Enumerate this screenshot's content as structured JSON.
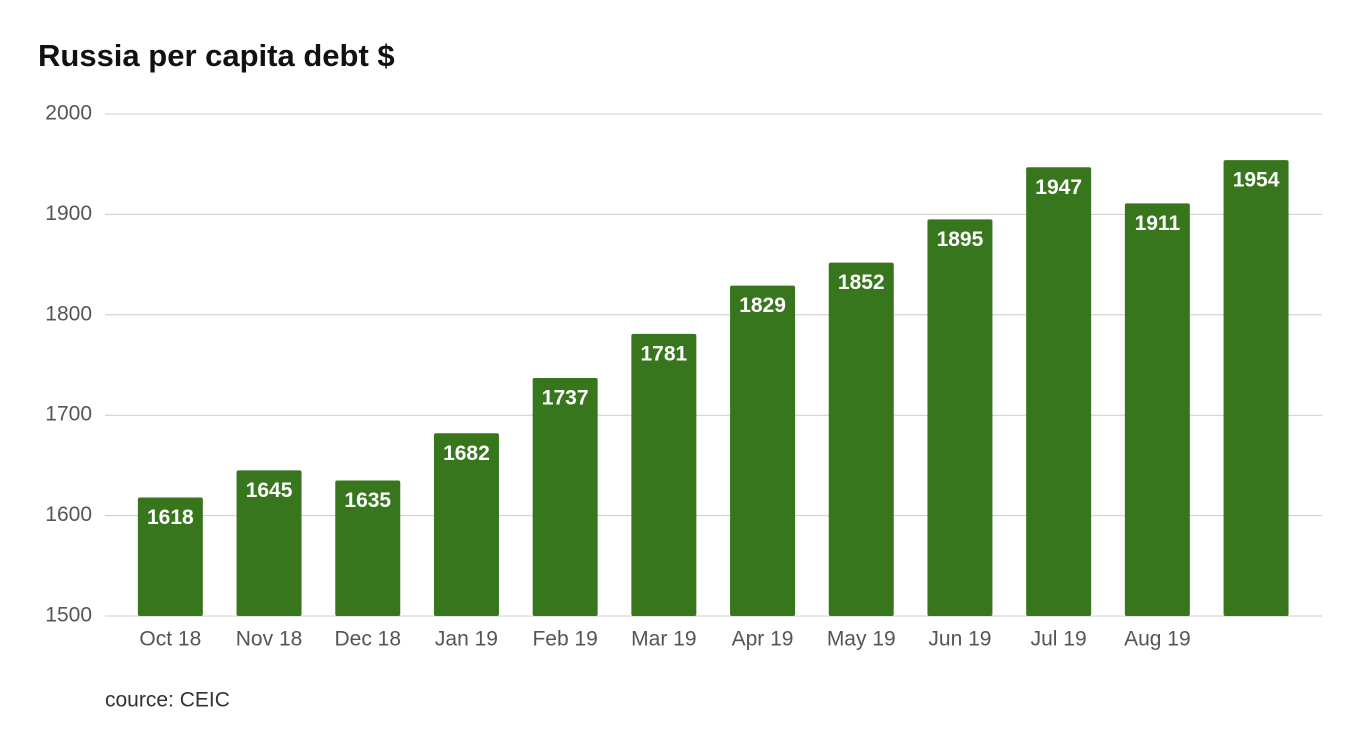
{
  "chart_data": {
    "type": "bar",
    "title": "Russia per capita debt $",
    "categories": [
      "Oct 18",
      "Nov 18",
      "Dec 18",
      "Jan 19",
      "Feb 19",
      "Mar 19",
      "Apr 19",
      "May 19",
      "Jun 19",
      "Jul 19",
      "Aug 19",
      null
    ],
    "values": [
      1618,
      1645,
      1635,
      1682,
      1737,
      1781,
      1829,
      1852,
      1895,
      1947,
      1911,
      1954
    ],
    "color": "#38761d",
    "ylim": [
      1500,
      2000
    ],
    "yticks": [
      1500,
      1600,
      1700,
      1800,
      1900,
      2000
    ],
    "grid": true,
    "source": "cource: CEIC"
  }
}
